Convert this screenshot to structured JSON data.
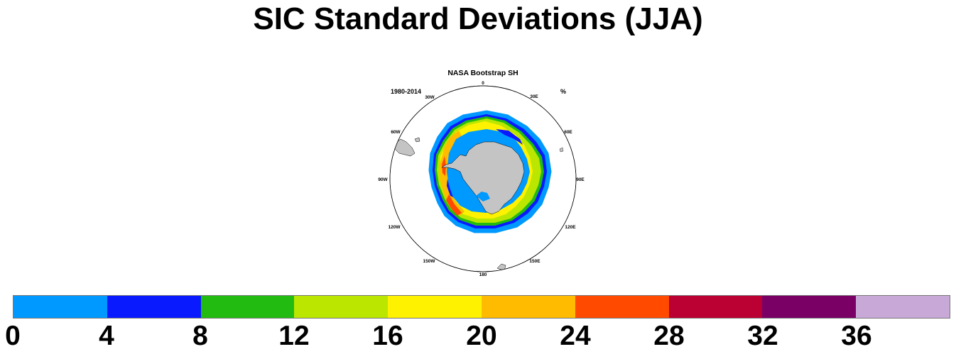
{
  "title": "SIC Standard Deviations (JJA)",
  "panel": {
    "title": "NASA Bootstrap SH",
    "left_string": "1980-2014",
    "right_string": "%",
    "lon_labels": [
      "0",
      "30E",
      "60E",
      "90E",
      "120E",
      "150E",
      "180",
      "150W",
      "120W",
      "90W",
      "60W",
      "30W"
    ]
  },
  "colorbar": {
    "colors": [
      "#0099ff",
      "#0a1aff",
      "#22bb11",
      "#bbe600",
      "#fff200",
      "#ffbb00",
      "#ff4a00",
      "#bb0033",
      "#7a0066",
      "#c8a8d6"
    ],
    "labels": [
      "0",
      "4",
      "8",
      "12",
      "16",
      "20",
      "24",
      "28",
      "32",
      "36"
    ]
  },
  "map_colors": {
    "land": "#c4c4c4",
    "coast": "#000000",
    "ocean": "#ffffff",
    "ice_interior": "#0099ff"
  }
}
